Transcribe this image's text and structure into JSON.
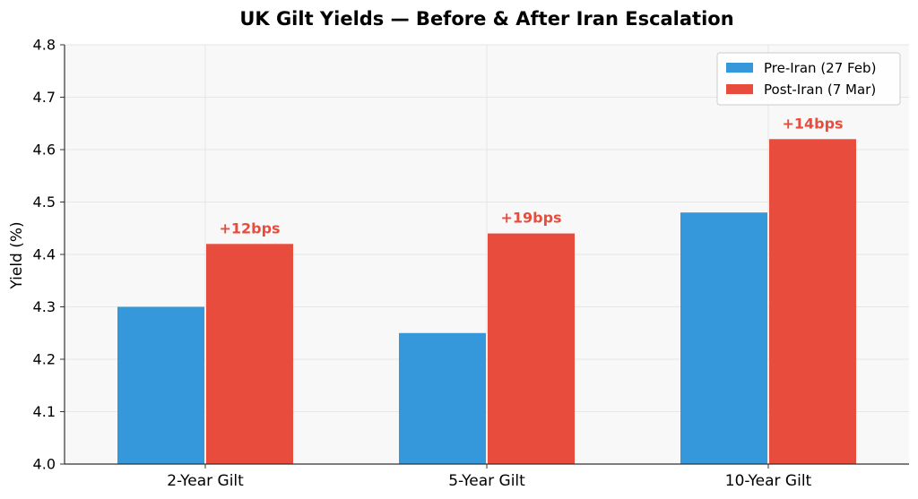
{
  "chart_data": {
    "type": "bar",
    "title": "UK Gilt Yields — Before & After Iran Escalation",
    "xlabel": "",
    "ylabel": "Yield (%)",
    "categories": [
      "2-Year Gilt",
      "5-Year Gilt",
      "10-Year Gilt"
    ],
    "series": [
      {
        "name": "Pre-Iran (27 Feb)",
        "values": [
          4.3,
          4.25,
          4.48
        ],
        "color": "#3498db"
      },
      {
        "name": "Post-Iran (7 Mar)",
        "values": [
          4.42,
          4.44,
          4.62
        ],
        "color": "#e74c3c"
      }
    ],
    "annotations": [
      "+12bps",
      "+19bps",
      "+14bps"
    ],
    "annotation_color": "#e74c3c",
    "ylim": [
      4.0,
      4.8
    ],
    "yticks": [
      "4.0",
      "4.1",
      "4.2",
      "4.3",
      "4.4",
      "4.5",
      "4.6",
      "4.7",
      "4.8"
    ],
    "grid": true,
    "legend_position": "top-right",
    "plot_background": "#f8f8f8"
  }
}
